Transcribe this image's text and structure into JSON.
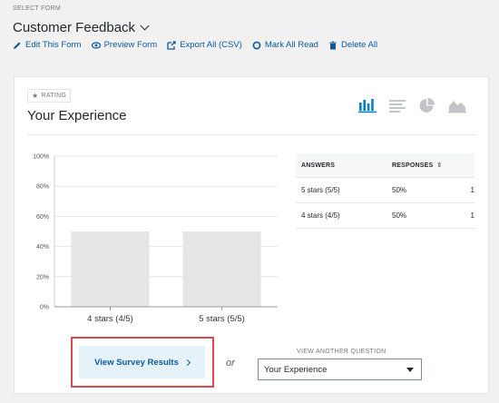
{
  "header": {
    "select_label": "SELECT FORM",
    "form_name": "Customer Feedback",
    "actions": [
      {
        "label": "Edit This Form",
        "icon": "pencil-icon"
      },
      {
        "label": "Preview Form",
        "icon": "eye-icon"
      },
      {
        "label": "Export All (CSV)",
        "icon": "export-icon"
      },
      {
        "label": "Mark All Read",
        "icon": "circle-icon"
      },
      {
        "label": "Delete All",
        "icon": "trash-icon"
      }
    ]
  },
  "card": {
    "badge": "RATING",
    "title": "Your Experience",
    "view_icons": [
      "bar-chart-icon",
      "list-icon",
      "pie-chart-icon",
      "area-chart-icon"
    ]
  },
  "chart_data": {
    "type": "bar",
    "categories": [
      "4 stars (4/5)",
      "5 stars (5/5)"
    ],
    "values": [
      50,
      50
    ],
    "yticks": [
      "0%",
      "20%",
      "40%",
      "60%",
      "80%",
      "100%"
    ],
    "ylim": [
      0,
      100
    ],
    "bar_color": "#e5e5e5",
    "grid": true
  },
  "table": {
    "headers": {
      "answers": "ANSWERS",
      "responses": "RESPONSES"
    },
    "rows": [
      {
        "answer": "5 stars (5/5)",
        "percent": "50%",
        "count": "1"
      },
      {
        "answer": "4 stars (4/5)",
        "percent": "50%",
        "count": "1"
      }
    ]
  },
  "footer": {
    "results_button": "View Survey Results",
    "or_text": "or",
    "another_label": "VIEW ANOTHER QUESTION",
    "selected_question": "Your Experience"
  },
  "colors": {
    "accent": "#0a5a9c",
    "highlight": "#e0474c",
    "button_bg": "#e6f2fa"
  }
}
